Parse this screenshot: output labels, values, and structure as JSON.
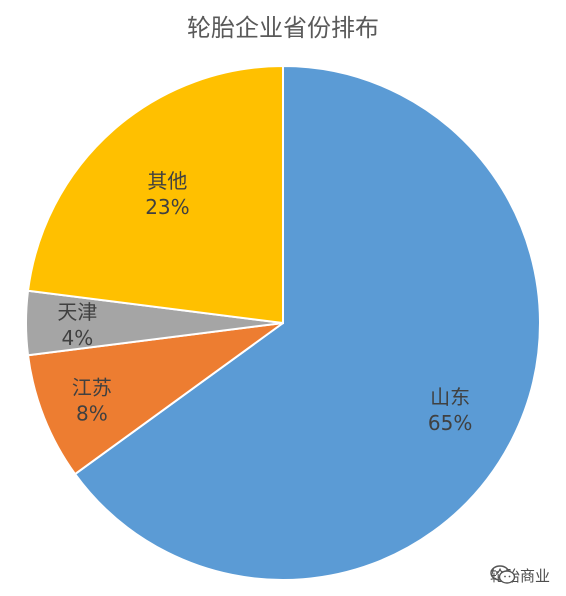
{
  "chart_data": {
    "type": "pie",
    "title": "轮胎企业省份排布",
    "categories": [
      "山东",
      "江苏",
      "天津",
      "其他"
    ],
    "values": [
      65,
      8,
      4,
      23
    ],
    "labels": [
      "65%",
      "8%",
      "4%",
      "23%"
    ],
    "colors": [
      "#5B9BD5",
      "#ED7D31",
      "#A5A5A5",
      "#FFC000"
    ],
    "legend": "none"
  },
  "watermark": {
    "text": "轮胎商业",
    "icon": "wechat-icon"
  }
}
